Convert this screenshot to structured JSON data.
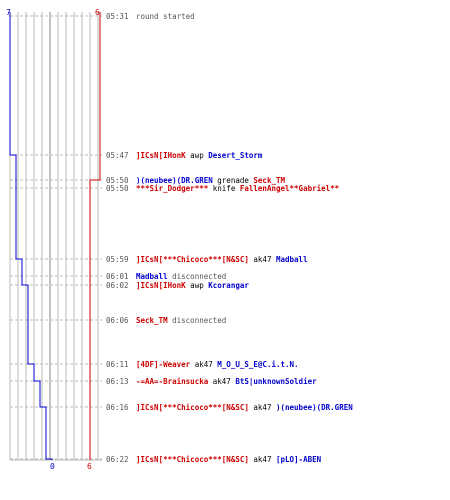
{
  "colors": {
    "team_a": "#0000cc",
    "team_b": "#cc0000",
    "grid": "#bbbbbb",
    "center_line": "#888888",
    "dash": "#bbbbbb",
    "time": "#555555",
    "neutral": "#555555"
  },
  "counts": {
    "start_blue": "7",
    "start_red": "6",
    "end_blue": "0",
    "end_red": "6"
  },
  "events": [
    {
      "time": "05:31",
      "parts": [
        {
          "t": "round started",
          "c": "neutral"
        }
      ],
      "blue": 7,
      "red": 6
    },
    {
      "time": "05:47",
      "parts": [
        {
          "t": "]ICsN[IHonK",
          "c": "team_b",
          "bold": true
        },
        {
          "t": " awp ",
          "c": "plain"
        },
        {
          "t": "Desert_Storm",
          "c": "team_a",
          "bold": true
        }
      ],
      "blue": 6,
      "red": 6
    },
    {
      "time": "05:50",
      "parts": [
        {
          "t": ")(neubee)(DR.GREN",
          "c": "team_a",
          "bold": true
        },
        {
          "t": " grenade ",
          "c": "plain"
        },
        {
          "t": "Seck_TM",
          "c": "team_b",
          "bold": true
        }
      ],
      "blue": 6,
      "red": 5
    },
    {
      "time": "05:50",
      "parts": [
        {
          "t": "***Sir_Dodger***",
          "c": "team_b",
          "bold": true
        },
        {
          "t": " knife ",
          "c": "plain"
        },
        {
          "t": "FallenAngel**Gabriel**",
          "c": "team_b",
          "bold": true
        }
      ],
      "blue": 6,
      "red": 4
    },
    {
      "time": "05:59",
      "parts": [
        {
          "t": "]ICsN[***Chicoco***[N&SC]",
          "c": "team_b",
          "bold": true
        },
        {
          "t": " ak47 ",
          "c": "plain"
        },
        {
          "t": "Madball",
          "c": "team_a",
          "bold": true
        }
      ],
      "blue": 5,
      "red": 4
    },
    {
      "time": "06:01",
      "parts": [
        {
          "t": "Madball",
          "c": "team_a",
          "bold": true
        },
        {
          "t": " disconnected",
          "c": "neutral"
        }
      ],
      "blue": 5,
      "red": 4
    },
    {
      "time": "06:02",
      "parts": [
        {
          "t": "]ICsN[IHonK",
          "c": "team_b",
          "bold": true
        },
        {
          "t": " awp ",
          "c": "plain"
        },
        {
          "t": "Kcorangar",
          "c": "team_a",
          "bold": true
        }
      ],
      "blue": 4,
      "red": 4
    },
    {
      "time": "06:06",
      "parts": [
        {
          "t": "Seck_TM",
          "c": "team_b",
          "bold": true
        },
        {
          "t": " disconnected",
          "c": "neutral"
        }
      ],
      "blue": 4,
      "red": 4
    },
    {
      "time": "06:11",
      "parts": [
        {
          "t": "[4DF]-Weaver",
          "c": "team_b",
          "bold": true
        },
        {
          "t": " ak47 ",
          "c": "plain"
        },
        {
          "t": "M_O_U_S_E@C.i.t.N.",
          "c": "team_a",
          "bold": true
        }
      ],
      "blue": 3,
      "red": 4
    },
    {
      "time": "06:13",
      "parts": [
        {
          "t": "-=AA=-Brainsucka",
          "c": "team_b",
          "bold": true
        },
        {
          "t": " ak47 ",
          "c": "plain"
        },
        {
          "t": "BtS|unknownSoldier",
          "c": "team_a",
          "bold": true
        }
      ],
      "blue": 2,
      "red": 4
    },
    {
      "time": "06:16",
      "parts": [
        {
          "t": "]ICsN[***Chicoco***[N&SC]",
          "c": "team_b",
          "bold": true
        },
        {
          "t": " ak47 ",
          "c": "plain"
        },
        {
          "t": ")(neubee)(DR.GREN",
          "c": "team_a",
          "bold": true
        }
      ],
      "blue": 1,
      "red": 4
    },
    {
      "time": "06:22",
      "parts": [
        {
          "t": "]ICsN[***Chicoco***[N&SC]",
          "c": "team_b",
          "bold": true
        },
        {
          "t": " ak47 ",
          "c": "plain"
        },
        {
          "t": "[pLO]-ABEN",
          "c": "team_a",
          "bold": true
        }
      ],
      "blue": 0,
      "red": 6
    }
  ]
}
